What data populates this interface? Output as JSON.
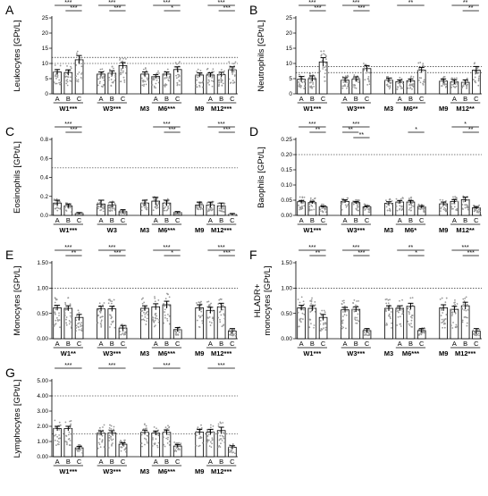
{
  "figure": {
    "stars_labels": [
      "***",
      "**",
      "*"
    ],
    "colors": {
      "bar": "#ffffff",
      "stroke": "#000000",
      "dots": "#9a9a9a",
      "refline": "#000000"
    }
  },
  "chart_data": [
    {
      "type": "bar",
      "panel_letter": "A",
      "ylabel": "Leukocytes [GPt/L]",
      "ylim": [
        0,
        25
      ],
      "yticks": [
        0,
        5,
        10,
        15,
        20,
        25
      ],
      "reference_lines": [
        10,
        12
      ],
      "categories": [
        "A",
        "B",
        "C",
        "",
        "A",
        "B",
        "C",
        "",
        "",
        "A",
        "B",
        "C",
        "",
        "",
        "A",
        "B",
        "C"
      ],
      "group_labels": [
        {
          "label": "W1***",
          "center": 1
        },
        {
          "label": "W3***",
          "center": 5
        },
        {
          "label": "M3",
          "center": 8
        },
        {
          "label": "M6***",
          "center": 10
        },
        {
          "label": "M9",
          "center": 13
        },
        {
          "label": "M12***",
          "center": 15
        }
      ],
      "values": [
        7.2,
        7.0,
        11.2,
        null,
        6.5,
        6.8,
        9.3,
        null,
        6.5,
        5.7,
        6.5,
        8.0,
        null,
        6.2,
        6.2,
        6.3,
        7.9
      ],
      "errors": [
        0.8,
        0.9,
        1.4,
        null,
        0.7,
        0.8,
        1.0,
        null,
        0.7,
        0.6,
        0.7,
        0.9,
        null,
        0.7,
        0.7,
        0.8,
        1.0
      ],
      "significance": [
        {
          "from": 0,
          "to": 2,
          "label": "***",
          "level": 1
        },
        {
          "from": 1,
          "to": 2,
          "label": "***",
          "level": 2
        },
        {
          "from": 4,
          "to": 6,
          "label": "***",
          "level": 1
        },
        {
          "from": 5,
          "to": 6,
          "label": "***",
          "level": 2
        },
        {
          "from": 9,
          "to": 11,
          "label": "***",
          "level": 1
        },
        {
          "from": 10,
          "to": 11,
          "label": "*",
          "level": 2
        },
        {
          "from": 14,
          "to": 16,
          "label": "***",
          "level": 1
        },
        {
          "from": 15,
          "to": 16,
          "label": "***",
          "level": 2
        }
      ]
    },
    {
      "type": "bar",
      "panel_letter": "B",
      "ylabel": "Neutrophils [GPt/L]",
      "ylim": [
        0,
        25
      ],
      "yticks": [
        0,
        5,
        10,
        15,
        20,
        25
      ],
      "reference_lines": [
        7,
        9
      ],
      "categories": [
        "A",
        "B",
        "C",
        "",
        "A",
        "B",
        "C",
        "",
        "",
        "A",
        "B",
        "C",
        "",
        "",
        "A",
        "B",
        "C"
      ],
      "group_labels": [
        {
          "label": "W1***",
          "center": 1
        },
        {
          "label": "W3***",
          "center": 5
        },
        {
          "label": "M3",
          "center": 8
        },
        {
          "label": "M6**",
          "center": 10
        },
        {
          "label": "M9",
          "center": 13
        },
        {
          "label": "M12**",
          "center": 15
        }
      ],
      "values": [
        4.8,
        5.0,
        10.5,
        null,
        4.5,
        4.8,
        8.3,
        null,
        4.5,
        4.0,
        4.3,
        7.8,
        null,
        4.2,
        3.9,
        3.8,
        7.8
      ],
      "errors": [
        0.9,
        0.9,
        1.4,
        null,
        0.8,
        0.8,
        1.0,
        null,
        0.7,
        0.6,
        0.6,
        0.9,
        null,
        0.7,
        0.7,
        0.8,
        1.2
      ],
      "significance": [
        {
          "from": 0,
          "to": 2,
          "label": "***",
          "level": 1
        },
        {
          "from": 1,
          "to": 2,
          "label": "***",
          "level": 2
        },
        {
          "from": 4,
          "to": 6,
          "label": "***",
          "level": 1
        },
        {
          "from": 5,
          "to": 6,
          "label": "***",
          "level": 2
        },
        {
          "from": 9,
          "to": 11,
          "label": "**",
          "level": 1
        },
        {
          "from": 14,
          "to": 16,
          "label": "**",
          "level": 1
        },
        {
          "from": 15,
          "to": 16,
          "label": "**",
          "level": 2
        }
      ]
    },
    {
      "type": "bar",
      "panel_letter": "C",
      "ylabel": "Eosinophils [GPt/L]",
      "ylim": [
        0,
        0.8
      ],
      "yticks": [
        0,
        0.2,
        0.4,
        0.6,
        0.8
      ],
      "tick_format": "0.0",
      "reference_lines": [
        0.5
      ],
      "categories": [
        "A",
        "B",
        "C",
        "",
        "A",
        "B",
        "C",
        "",
        "",
        "A",
        "B",
        "C",
        "",
        "",
        "A",
        "B",
        "C"
      ],
      "group_labels": [
        {
          "label": "W1***",
          "center": 1
        },
        {
          "label": "W3",
          "center": 5
        },
        {
          "label": "M3",
          "center": 8
        },
        {
          "label": "M6***",
          "center": 10
        },
        {
          "label": "M9",
          "center": 13
        },
        {
          "label": "M12***",
          "center": 15
        }
      ],
      "values": [
        0.13,
        0.1,
        0.02,
        null,
        0.12,
        0.11,
        0.04,
        null,
        0.13,
        0.15,
        0.13,
        0.03,
        null,
        0.11,
        0.11,
        0.1,
        0.01
      ],
      "errors": [
        0.03,
        0.02,
        0.01,
        null,
        0.04,
        0.03,
        0.02,
        null,
        0.03,
        0.04,
        0.03,
        0.01,
        null,
        0.03,
        0.03,
        0.03,
        0.01
      ],
      "significance": [
        {
          "from": 0,
          "to": 2,
          "label": "***",
          "level": 1
        },
        {
          "from": 1,
          "to": 2,
          "label": "***",
          "level": 2
        },
        {
          "from": 9,
          "to": 11,
          "label": "***",
          "level": 1
        },
        {
          "from": 10,
          "to": 11,
          "label": "***",
          "level": 2
        },
        {
          "from": 14,
          "to": 16,
          "label": "***",
          "level": 1
        },
        {
          "from": 15,
          "to": 16,
          "label": "***",
          "level": 2
        }
      ]
    },
    {
      "type": "bar",
      "panel_letter": "D",
      "ylabel": "Baophils [GPt/L]",
      "ylim": [
        0,
        0.25
      ],
      "yticks": [
        0,
        0.05,
        0.1,
        0.15,
        0.2,
        0.25
      ],
      "tick_format": "0.00",
      "reference_lines": [
        0.2
      ],
      "categories": [
        "A",
        "B",
        "C",
        "",
        "A",
        "B",
        "C",
        "",
        "",
        "A",
        "B",
        "C",
        "",
        "",
        "A",
        "B",
        "C"
      ],
      "group_labels": [
        {
          "label": "W1***",
          "center": 1
        },
        {
          "label": "W3***",
          "center": 5
        },
        {
          "label": "M3",
          "center": 8
        },
        {
          "label": "M6*",
          "center": 10
        },
        {
          "label": "M9",
          "center": 13
        },
        {
          "label": "M12**",
          "center": 15
        }
      ],
      "values": [
        0.045,
        0.042,
        0.028,
        null,
        0.046,
        0.042,
        0.028,
        null,
        0.04,
        0.044,
        0.044,
        0.028,
        null,
        0.038,
        0.046,
        0.052,
        0.025
      ],
      "errors": [
        0.004,
        0.004,
        0.003,
        null,
        0.005,
        0.004,
        0.003,
        null,
        0.005,
        0.005,
        0.005,
        0.004,
        null,
        0.006,
        0.006,
        0.008,
        0.004
      ],
      "significance": [
        {
          "from": 0,
          "to": 2,
          "label": "***",
          "level": 1
        },
        {
          "from": 1,
          "to": 2,
          "label": "**",
          "level": 2
        },
        {
          "from": 4,
          "to": 6,
          "label": "***",
          "level": 1
        },
        {
          "from": 4,
          "to": 5,
          "label": "**",
          "level": 2
        },
        {
          "from": 5,
          "to": 6,
          "label": "**",
          "level": 3
        },
        {
          "from": 10,
          "to": 11,
          "label": "*",
          "level": 2
        },
        {
          "from": 14,
          "to": 16,
          "label": "*",
          "level": 1
        },
        {
          "from": 15,
          "to": 16,
          "label": "**",
          "level": 2
        }
      ]
    },
    {
      "type": "bar",
      "panel_letter": "E",
      "ylabel": "Monocytes [GPt/L]",
      "ylim": [
        0,
        1.5
      ],
      "yticks": [
        0,
        0.5,
        1,
        1.5
      ],
      "tick_format": "0.00",
      "reference_lines": [
        1.0
      ],
      "categories": [
        "A",
        "B",
        "C",
        "",
        "A",
        "B",
        "C",
        "",
        "",
        "A",
        "B",
        "C",
        "",
        "",
        "A",
        "B",
        "C"
      ],
      "group_labels": [
        {
          "label": "W1**",
          "center": 1
        },
        {
          "label": "W3***",
          "center": 5
        },
        {
          "label": "M3",
          "center": 8
        },
        {
          "label": "M6***",
          "center": 10
        },
        {
          "label": "M9",
          "center": 13
        },
        {
          "label": "M12***",
          "center": 15
        }
      ],
      "values": [
        0.61,
        0.6,
        0.42,
        null,
        0.59,
        0.59,
        0.21,
        null,
        0.6,
        0.63,
        0.67,
        0.18,
        null,
        0.61,
        0.56,
        0.63,
        0.15
      ],
      "errors": [
        0.05,
        0.05,
        0.06,
        null,
        0.05,
        0.05,
        0.05,
        null,
        0.05,
        0.06,
        0.07,
        0.04,
        null,
        0.06,
        0.06,
        0.07,
        0.05
      ],
      "significance": [
        {
          "from": 0,
          "to": 2,
          "label": "***",
          "level": 1
        },
        {
          "from": 1,
          "to": 2,
          "label": "**",
          "level": 2
        },
        {
          "from": 4,
          "to": 6,
          "label": "***",
          "level": 1
        },
        {
          "from": 5,
          "to": 6,
          "label": "***",
          "level": 2
        },
        {
          "from": 9,
          "to": 11,
          "label": "***",
          "level": 1
        },
        {
          "from": 10,
          "to": 11,
          "label": "*",
          "level": 2
        },
        {
          "from": 14,
          "to": 16,
          "label": "***",
          "level": 1
        },
        {
          "from": 15,
          "to": 16,
          "label": "***",
          "level": 2
        }
      ]
    },
    {
      "type": "bar",
      "panel_letter": "F",
      "ylabel": "HLADR+\nmonocytes [GPt/L]",
      "ylim": [
        0,
        1.5
      ],
      "yticks": [
        0,
        0.5,
        1,
        1.5
      ],
      "tick_format": "0.00",
      "reference_lines": [
        1.0
      ],
      "categories": [
        "A",
        "B",
        "C",
        "",
        "A",
        "B",
        "C",
        "",
        "",
        "A",
        "B",
        "C",
        "",
        "",
        "A",
        "B",
        "C"
      ],
      "group_labels": [
        {
          "label": "W1***",
          "center": 1
        },
        {
          "label": "W3***",
          "center": 5
        },
        {
          "label": "M3",
          "center": 8
        },
        {
          "label": "M6***",
          "center": 10
        },
        {
          "label": "M9",
          "center": 13
        },
        {
          "label": "M12***",
          "center": 15
        }
      ],
      "values": [
        0.61,
        0.6,
        0.42,
        null,
        0.57,
        0.58,
        0.16,
        null,
        0.6,
        0.6,
        0.64,
        0.16,
        null,
        0.61,
        0.58,
        0.65,
        0.15
      ],
      "errors": [
        0.05,
        0.05,
        0.06,
        null,
        0.05,
        0.05,
        0.04,
        null,
        0.05,
        0.05,
        0.06,
        0.04,
        null,
        0.06,
        0.06,
        0.07,
        0.05
      ],
      "significance": [
        {
          "from": 0,
          "to": 2,
          "label": "***",
          "level": 1
        },
        {
          "from": 1,
          "to": 2,
          "label": "**",
          "level": 2
        },
        {
          "from": 4,
          "to": 6,
          "label": "***",
          "level": 1
        },
        {
          "from": 5,
          "to": 6,
          "label": "***",
          "level": 2
        },
        {
          "from": 9,
          "to": 11,
          "label": "**",
          "level": 1
        },
        {
          "from": 10,
          "to": 11,
          "label": "*",
          "level": 2
        },
        {
          "from": 14,
          "to": 16,
          "label": "***",
          "level": 1
        },
        {
          "from": 15,
          "to": 16,
          "label": "***",
          "level": 2
        }
      ]
    },
    {
      "type": "bar",
      "panel_letter": "G",
      "ylabel": "Lymphocytes [GPt/L]",
      "ylim": [
        0,
        5
      ],
      "yticks": [
        0,
        1,
        2,
        3,
        4,
        5
      ],
      "tick_format": "0.00",
      "reference_lines": [
        1.5,
        4.0
      ],
      "categories": [
        "A",
        "B",
        "C",
        "",
        "A",
        "B",
        "C",
        "",
        "",
        "A",
        "B",
        "C",
        "",
        "",
        "A",
        "B",
        "C"
      ],
      "group_labels": [
        {
          "label": "W1***",
          "center": 1
        },
        {
          "label": "W3***",
          "center": 5
        },
        {
          "label": "M3",
          "center": 8
        },
        {
          "label": "M6***",
          "center": 10
        },
        {
          "label": "M9",
          "center": 13
        },
        {
          "label": "M12***",
          "center": 15
        }
      ],
      "values": [
        1.85,
        1.85,
        0.58,
        null,
        1.55,
        1.57,
        0.82,
        null,
        1.6,
        1.55,
        1.6,
        0.7,
        null,
        1.62,
        1.62,
        1.72,
        0.62
      ],
      "errors": [
        0.15,
        0.15,
        0.1,
        null,
        0.14,
        0.14,
        0.1,
        null,
        0.15,
        0.14,
        0.15,
        0.1,
        null,
        0.18,
        0.18,
        0.22,
        0.1
      ],
      "significance": [
        {
          "from": 0,
          "to": 2,
          "label": "***",
          "level": 1
        },
        {
          "from": 4,
          "to": 6,
          "label": "***",
          "level": 1
        },
        {
          "from": 9,
          "to": 11,
          "label": "***",
          "level": 1
        },
        {
          "from": 14,
          "to": 16,
          "label": "***",
          "level": 1
        }
      ]
    }
  ]
}
